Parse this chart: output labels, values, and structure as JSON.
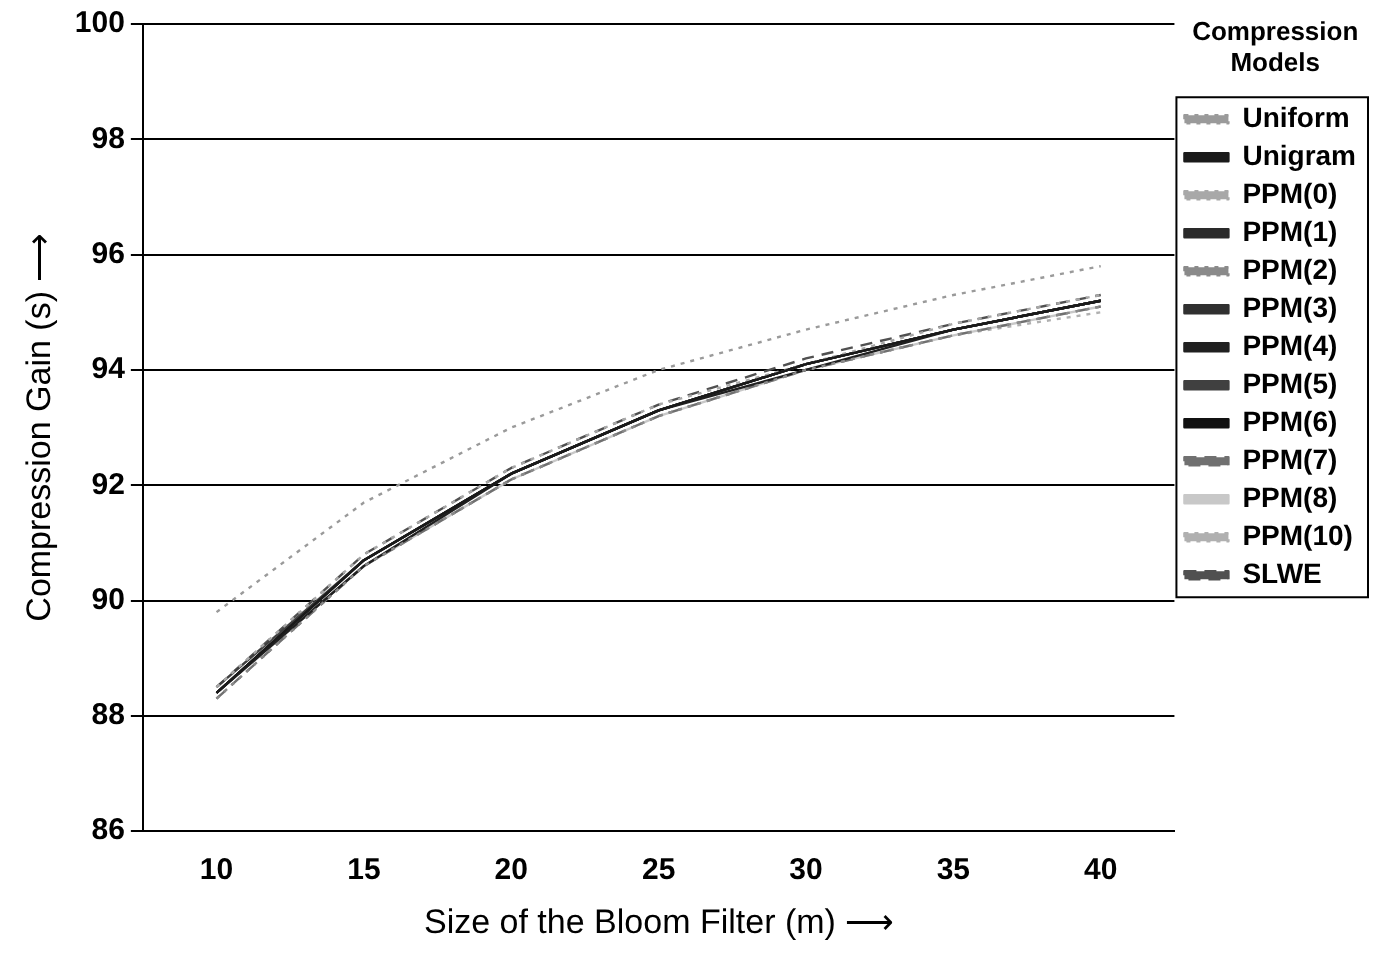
{
  "chart_data": {
    "type": "line",
    "xlabel": "Size of the Bloom Filter (m) ⟶",
    "ylabel": "Compression Gain (s) ⟶",
    "legend_title": "Compression Models",
    "legend": "right",
    "grid": "y",
    "x": [
      10,
      15,
      20,
      25,
      30,
      35,
      40
    ],
    "xlim": [
      7.5,
      42.5
    ],
    "xticks": [
      10,
      15,
      20,
      25,
      30,
      35,
      40
    ],
    "ylim": [
      86,
      100
    ],
    "yticks": [
      86,
      88,
      90,
      92,
      94,
      96,
      98,
      100
    ],
    "series": [
      {
        "name": "Uniform",
        "color": "#9a9a9a",
        "line_style": "dotted",
        "values": [
          89.8,
          91.7,
          93.0,
          94.0,
          94.7,
          95.3,
          95.8
        ]
      },
      {
        "name": "Unigram",
        "color": "#1a1a1a",
        "line_style": "solid",
        "values": [
          88.4,
          90.7,
          92.2,
          93.3,
          94.1,
          94.7,
          95.2
        ]
      },
      {
        "name": "PPM(0)",
        "color": "#a8a8a8",
        "line_style": "dotted",
        "values": [
          88.5,
          90.8,
          92.3,
          93.4,
          94.1,
          94.8,
          95.3
        ]
      },
      {
        "name": "PPM(1)",
        "color": "#2a2a2a",
        "line_style": "solid",
        "values": [
          88.4,
          90.7,
          92.2,
          93.3,
          94.1,
          94.7,
          95.2
        ]
      },
      {
        "name": "PPM(2)",
        "color": "#8a8a8a",
        "line_style": "dotted",
        "values": [
          88.3,
          90.6,
          92.1,
          93.2,
          94.0,
          94.6,
          95.1
        ]
      },
      {
        "name": "PPM(3)",
        "color": "#303030",
        "line_style": "solid",
        "values": [
          88.4,
          90.7,
          92.2,
          93.3,
          94.1,
          94.7,
          95.2
        ]
      },
      {
        "name": "PPM(4)",
        "color": "#202020",
        "line_style": "solid",
        "values": [
          88.4,
          90.6,
          92.2,
          93.3,
          94.0,
          94.7,
          95.2
        ]
      },
      {
        "name": "PPM(5)",
        "color": "#404040",
        "line_style": "solid",
        "values": [
          88.5,
          90.7,
          92.2,
          93.3,
          94.1,
          94.7,
          95.2
        ]
      },
      {
        "name": "PPM(6)",
        "color": "#111111",
        "line_style": "solid",
        "values": [
          88.4,
          90.7,
          92.2,
          93.3,
          94.1,
          94.7,
          95.2
        ]
      },
      {
        "name": "PPM(7)",
        "color": "#707070",
        "line_style": "dashed",
        "values": [
          88.3,
          90.6,
          92.1,
          93.2,
          94.0,
          94.6,
          95.1
        ]
      },
      {
        "name": "PPM(8)",
        "color": "#c8c8c8",
        "line_style": "solid",
        "values": [
          88.4,
          90.6,
          92.1,
          93.2,
          94.0,
          94.6,
          95.1
        ]
      },
      {
        "name": "PPM(10)",
        "color": "#b0b0b0",
        "line_style": "dotted",
        "values": [
          88.3,
          90.6,
          92.1,
          93.2,
          94.0,
          94.6,
          95.0
        ]
      },
      {
        "name": "SLWE",
        "color": "#505050",
        "line_style": "dashed",
        "values": [
          88.5,
          90.8,
          92.3,
          93.4,
          94.2,
          94.8,
          95.3
        ]
      }
    ]
  }
}
